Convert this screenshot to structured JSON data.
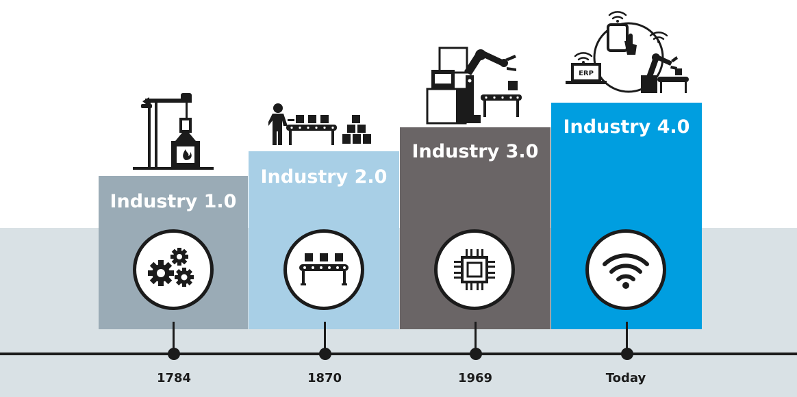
{
  "stages": [
    {
      "title": "Industry 1.0",
      "date": "1784",
      "color": "#9aabb6",
      "emblem": "gears-icon",
      "illustration": "steam-engine-icon"
    },
    {
      "title": "Industry 2.0",
      "date": "1870",
      "color": "#a8cfe6",
      "emblem": "conveyor-belt-icon",
      "illustration": "assembly-line-icon"
    },
    {
      "title": "Industry 3.0",
      "date": "1969",
      "color": "#6a6566",
      "emblem": "microchip-icon",
      "illustration": "robot-arm-icon"
    },
    {
      "title": "Industry 4.0",
      "date": "Today",
      "color": "#009ee0",
      "emblem": "wifi-icon",
      "illustration": "connected-factory-icon"
    }
  ],
  "erp_label": "ERP",
  "timeline_color": "#1b1b1b",
  "band_color": "#d9e1e5"
}
